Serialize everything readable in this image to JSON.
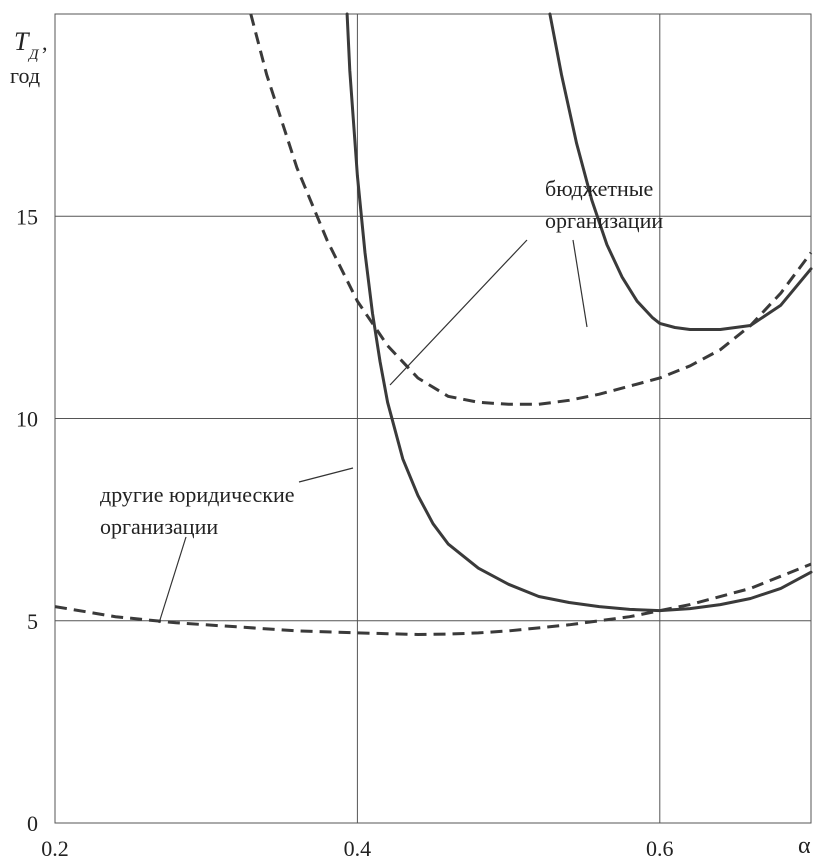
{
  "chart_data": {
    "type": "line",
    "ylabel": "T_Д, год",
    "ylabel_main": "T",
    "ylabel_sub": "Д",
    "ylabel_unit": "год",
    "xlabel": "α",
    "xlim": [
      0.2,
      0.7
    ],
    "ylim": [
      0,
      20
    ],
    "xticks": [
      "0.2",
      "0.4",
      "0.6"
    ],
    "yticks": [
      "0",
      "5",
      "10",
      "15"
    ],
    "grid": true,
    "annotations": {
      "budget": [
        "бюджетные",
        "организации"
      ],
      "other": [
        "другие юридические",
        "организации"
      ]
    },
    "series": [
      {
        "style": "solid",
        "x": [
          0.5273,
          0.535,
          0.545,
          0.555,
          0.565,
          0.575,
          0.585,
          0.595,
          0.6,
          0.61,
          0.62,
          0.64,
          0.66,
          0.68,
          0.7
        ],
        "y": [
          20.0,
          18.5,
          16.8,
          15.4,
          14.3,
          13.5,
          12.9,
          12.5,
          12.35,
          12.25,
          12.2,
          12.2,
          12.3,
          12.8,
          13.7
        ]
      },
      {
        "style": "dashed",
        "x": [
          0.3295,
          0.34,
          0.36,
          0.38,
          0.4,
          0.42,
          0.44,
          0.46,
          0.48,
          0.5,
          0.52,
          0.54,
          0.56,
          0.58,
          0.6,
          0.62,
          0.64,
          0.66,
          0.68,
          0.7
        ],
        "y": [
          20.0,
          18.5,
          16.2,
          14.4,
          12.9,
          11.8,
          11.0,
          10.55,
          10.4,
          10.35,
          10.35,
          10.45,
          10.6,
          10.8,
          11.0,
          11.3,
          11.7,
          12.3,
          13.1,
          14.1
        ]
      },
      {
        "style": "solid",
        "x": [
          0.3932,
          0.395,
          0.4,
          0.405,
          0.41,
          0.415,
          0.42,
          0.43,
          0.44,
          0.45,
          0.46,
          0.48,
          0.5,
          0.52,
          0.54,
          0.56,
          0.58,
          0.6,
          0.62,
          0.64,
          0.66,
          0.68,
          0.7
        ],
        "y": [
          20.0,
          18.6,
          16.0,
          14.1,
          12.6,
          11.4,
          10.4,
          9.0,
          8.1,
          7.4,
          6.9,
          6.3,
          5.9,
          5.6,
          5.45,
          5.35,
          5.28,
          5.25,
          5.3,
          5.4,
          5.55,
          5.8,
          6.2
        ]
      },
      {
        "style": "dashed",
        "x": [
          0.2,
          0.24,
          0.28,
          0.32,
          0.36,
          0.4,
          0.42,
          0.44,
          0.46,
          0.48,
          0.5,
          0.54,
          0.58,
          0.62,
          0.66,
          0.7
        ],
        "y": [
          5.35,
          5.1,
          4.95,
          4.85,
          4.75,
          4.7,
          4.68,
          4.66,
          4.67,
          4.7,
          4.75,
          4.9,
          5.1,
          5.4,
          5.8,
          6.4
        ]
      }
    ]
  }
}
